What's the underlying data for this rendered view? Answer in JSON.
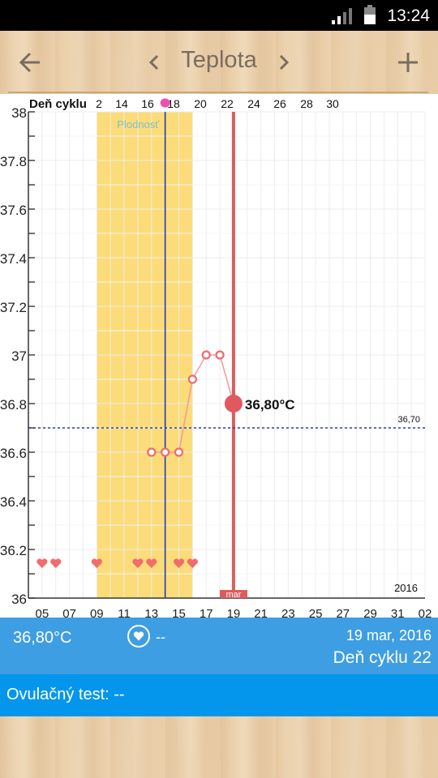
{
  "status_bar": {
    "time": "13:24",
    "icons": [
      "signal-icon",
      "battery-icon"
    ]
  },
  "app_bar": {
    "title": "Teplota",
    "back_icon": "arrow-left-icon",
    "prev_icon": "chevron-left-icon",
    "next_icon": "chevron-right-icon",
    "add_icon": "plus-icon"
  },
  "chart_data": {
    "type": "line",
    "title": "",
    "cycle_axis_label": "Deň cyklu",
    "cycle_ticks": [
      "2",
      "14",
      "16",
      "18",
      "20",
      "22",
      "24",
      "26",
      "28",
      "30"
    ],
    "date_ticks": [
      "05",
      "07",
      "09",
      "11",
      "13",
      "15",
      "17",
      "19",
      "21",
      "23",
      "25",
      "27",
      "29",
      "31",
      "02"
    ],
    "ylim": [
      36.0,
      38.0
    ],
    "y_ticks": [
      "38",
      "37.8",
      "37.6",
      "37.4",
      "37.2",
      "37",
      "36.8",
      "36.6",
      "36.4",
      "36.2",
      "36"
    ],
    "x_day_range": [
      4,
      33
    ],
    "fertile_window": {
      "label": "Plodnosť",
      "start_day": 9,
      "end_day": 16
    },
    "ovulation_day": 14,
    "today_day": 19,
    "today_label": "mar",
    "year_label": "2016",
    "coverline": {
      "value": 36.7,
      "label": "36,70",
      "color": "#1e3ec2"
    },
    "series": [
      {
        "values": [
          {
            "x": 13,
            "y": 36.6
          },
          {
            "x": 14,
            "y": 36.6
          },
          {
            "x": 15,
            "y": 36.6
          },
          {
            "x": 16,
            "y": 36.9
          },
          {
            "x": 17,
            "y": 37.0
          },
          {
            "x": 18,
            "y": 37.0
          },
          {
            "x": 19,
            "y": 36.8
          }
        ],
        "color": "#f29a9a"
      }
    ],
    "current_point": {
      "x": 19,
      "y": 36.8,
      "label": "36,80°C",
      "color": "#e05860"
    },
    "intercourse_days": [
      5,
      6,
      9,
      12,
      13,
      15,
      16
    ],
    "fertile_color": "#fbdc78",
    "today_line_color": "#dc5c5c"
  },
  "info_panel": {
    "temperature": "36,80°C",
    "intercourse_value": "--",
    "date": "19 mar, 2016",
    "cycle_day": "Deň cyklu 22"
  },
  "ovulation_test": {
    "label": "Ovulačný test: --"
  }
}
